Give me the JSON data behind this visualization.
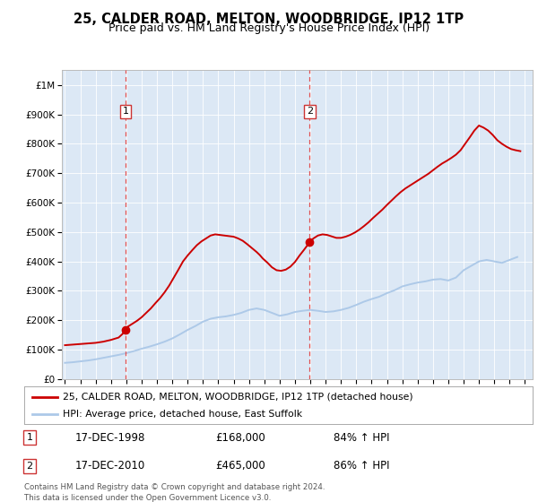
{
  "title": "25, CALDER ROAD, MELTON, WOODBRIDGE, IP12 1TP",
  "subtitle": "Price paid vs. HM Land Registry's House Price Index (HPI)",
  "hpi_years": [
    1995.0,
    1995.5,
    1996.0,
    1996.5,
    1997.0,
    1997.5,
    1998.0,
    1998.5,
    1999.0,
    1999.5,
    2000.0,
    2000.5,
    2001.0,
    2001.5,
    2002.0,
    2002.5,
    2003.0,
    2003.5,
    2004.0,
    2004.5,
    2005.0,
    2005.5,
    2006.0,
    2006.5,
    2007.0,
    2007.5,
    2008.0,
    2008.5,
    2009.0,
    2009.5,
    2010.0,
    2010.5,
    2011.0,
    2011.5,
    2012.0,
    2012.5,
    2013.0,
    2013.5,
    2014.0,
    2014.5,
    2015.0,
    2015.5,
    2016.0,
    2016.5,
    2017.0,
    2017.5,
    2018.0,
    2018.5,
    2019.0,
    2019.5,
    2020.0,
    2020.5,
    2021.0,
    2021.5,
    2022.0,
    2022.5,
    2023.0,
    2023.5,
    2024.0,
    2024.5
  ],
  "hpi_values": [
    55000,
    57000,
    60000,
    63000,
    67000,
    72000,
    77000,
    82000,
    88000,
    95000,
    103000,
    110000,
    118000,
    127000,
    138000,
    152000,
    167000,
    180000,
    195000,
    205000,
    210000,
    213000,
    218000,
    225000,
    235000,
    240000,
    235000,
    225000,
    215000,
    220000,
    228000,
    232000,
    235000,
    232000,
    228000,
    230000,
    235000,
    242000,
    252000,
    263000,
    272000,
    280000,
    292000,
    302000,
    315000,
    322000,
    328000,
    332000,
    338000,
    340000,
    335000,
    345000,
    370000,
    385000,
    400000,
    405000,
    400000,
    395000,
    405000,
    415000
  ],
  "price_years": [
    1995.0,
    1995.25,
    1995.5,
    1995.75,
    1996.0,
    1996.25,
    1996.5,
    1996.75,
    1997.0,
    1997.25,
    1997.5,
    1997.75,
    1998.0,
    1998.25,
    1998.5,
    1998.75,
    1998.96,
    1999.1,
    1999.4,
    1999.7,
    2000.0,
    2000.3,
    2000.6,
    2000.9,
    2001.2,
    2001.5,
    2001.8,
    2002.1,
    2002.4,
    2002.7,
    2003.0,
    2003.3,
    2003.6,
    2003.9,
    2004.2,
    2004.5,
    2004.8,
    2005.1,
    2005.4,
    2005.7,
    2006.0,
    2006.3,
    2006.6,
    2006.9,
    2007.2,
    2007.5,
    2007.7,
    2007.9,
    2008.2,
    2008.5,
    2008.8,
    2009.1,
    2009.4,
    2009.7,
    2010.0,
    2010.3,
    2010.6,
    2010.96,
    2011.2,
    2011.5,
    2011.8,
    2012.1,
    2012.4,
    2012.7,
    2013.0,
    2013.3,
    2013.6,
    2013.9,
    2014.2,
    2014.5,
    2014.8,
    2015.1,
    2015.4,
    2015.7,
    2016.0,
    2016.3,
    2016.6,
    2016.9,
    2017.2,
    2017.5,
    2017.8,
    2018.1,
    2018.4,
    2018.7,
    2019.0,
    2019.3,
    2019.6,
    2019.9,
    2020.2,
    2020.5,
    2020.8,
    2021.1,
    2021.4,
    2021.7,
    2022.0,
    2022.3,
    2022.6,
    2022.9,
    2023.2,
    2023.5,
    2023.8,
    2024.1,
    2024.4,
    2024.7
  ],
  "price_values": [
    115000,
    116000,
    117000,
    118000,
    119000,
    120000,
    121000,
    122000,
    123000,
    125000,
    127000,
    130000,
    133000,
    137000,
    141000,
    153000,
    168000,
    178000,
    188000,
    198000,
    210000,
    225000,
    240000,
    258000,
    275000,
    295000,
    318000,
    345000,
    372000,
    400000,
    420000,
    438000,
    455000,
    468000,
    478000,
    488000,
    492000,
    490000,
    488000,
    486000,
    484000,
    478000,
    470000,
    458000,
    445000,
    432000,
    422000,
    410000,
    396000,
    380000,
    370000,
    368000,
    372000,
    382000,
    398000,
    420000,
    440000,
    465000,
    478000,
    488000,
    492000,
    490000,
    485000,
    480000,
    480000,
    484000,
    490000,
    498000,
    508000,
    520000,
    533000,
    548000,
    562000,
    576000,
    592000,
    607000,
    622000,
    636000,
    648000,
    658000,
    668000,
    678000,
    688000,
    698000,
    710000,
    722000,
    733000,
    742000,
    752000,
    763000,
    778000,
    800000,
    822000,
    845000,
    862000,
    855000,
    845000,
    830000,
    812000,
    800000,
    790000,
    782000,
    778000,
    775000
  ],
  "transaction1_year": 1998.96,
  "transaction1_price": 168000,
  "transaction1_label": "1",
  "transaction1_date": "17-DEC-1998",
  "transaction1_amount": "£168,000",
  "transaction1_hpi": "84% ↑ HPI",
  "transaction2_year": 2010.96,
  "transaction2_price": 465000,
  "transaction2_label": "2",
  "transaction2_date": "17-DEC-2010",
  "transaction2_amount": "£465,000",
  "transaction2_hpi": "86% ↑ HPI",
  "xlim": [
    1994.8,
    2025.5
  ],
  "ylim": [
    0,
    1050000
  ],
  "yticks": [
    0,
    100000,
    200000,
    300000,
    400000,
    500000,
    600000,
    700000,
    800000,
    900000,
    1000000
  ],
  "ytick_labels": [
    "£0",
    "£100K",
    "£200K",
    "£300K",
    "£400K",
    "£500K",
    "£600K",
    "£700K",
    "£800K",
    "£900K",
    "£1M"
  ],
  "xticks": [
    1995,
    1996,
    1997,
    1998,
    1999,
    2000,
    2001,
    2002,
    2003,
    2004,
    2005,
    2006,
    2007,
    2008,
    2009,
    2010,
    2011,
    2012,
    2013,
    2014,
    2015,
    2016,
    2017,
    2018,
    2019,
    2020,
    2021,
    2022,
    2023,
    2024,
    2025
  ],
  "hpi_color": "#adc9e8",
  "price_color": "#cc0000",
  "vline_color": "#e05050",
  "marker_color": "#cc0000",
  "plot_bg": "#dce8f5",
  "legend1_label": "25, CALDER ROAD, MELTON, WOODBRIDGE, IP12 1TP (detached house)",
  "legend2_label": "HPI: Average price, detached house, East Suffolk",
  "footer": "Contains HM Land Registry data © Crown copyright and database right 2024.\nThis data is licensed under the Open Government Licence v3.0."
}
